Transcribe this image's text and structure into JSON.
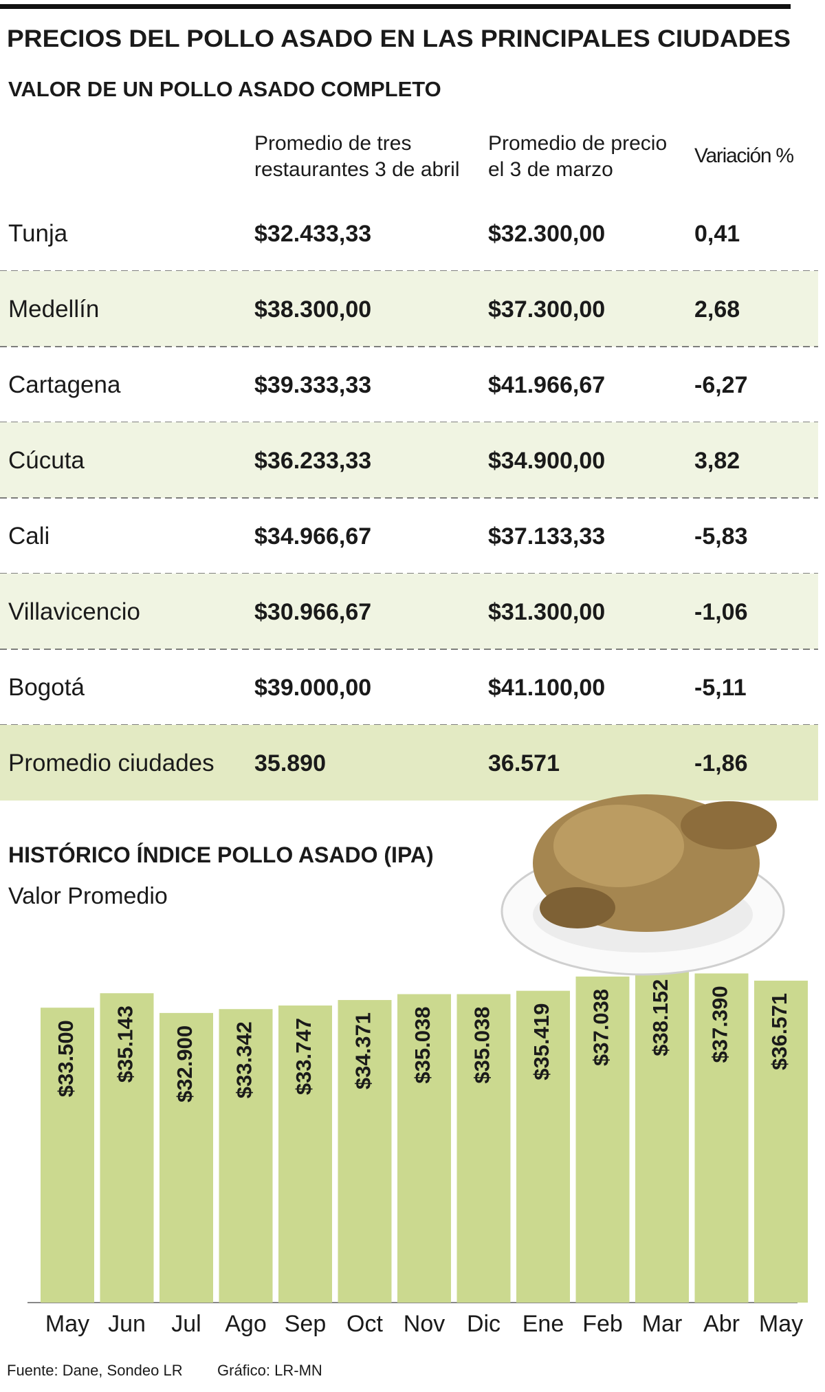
{
  "title": "PRECIOS DEL POLLO ASADO EN LAS PRINCIPALES CIUDADES",
  "subtitle": "VALOR DE UN POLLO ASADO COMPLETO",
  "table": {
    "columns": [
      [
        "Promedio de tres",
        "restaurantes 3 de abril"
      ],
      [
        "Promedio de precio",
        "el 3 de marzo"
      ],
      [
        "Variación %"
      ]
    ],
    "rows": [
      [
        "Tunja",
        "$32.433,33",
        "$32.300,00",
        "0,41"
      ],
      [
        "Medellín",
        "$38.300,00",
        "$37.300,00",
        "2,68"
      ],
      [
        "Cartagena",
        "$39.333,33",
        "$41.966,67",
        "-6,27"
      ],
      [
        "Cúcuta",
        "$36.233,33",
        "$34.900,00",
        "3,82"
      ],
      [
        "Cali",
        "$34.966,67",
        "$37.133,33",
        "-5,83"
      ],
      [
        "Villavicencio",
        "$30.966,67",
        "$31.300,00",
        "-1,06"
      ],
      [
        "Bogotá",
        "$39.000,00",
        "$41.100,00",
        "-5,11"
      ],
      [
        "Promedio ciudades",
        "35.890",
        "36.571",
        "-1,86"
      ]
    ]
  },
  "chart_data": {
    "type": "bar",
    "title": "HISTÓRICO ÍNDICE POLLO ASADO (IPA)",
    "subtitle": "Valor Promedio",
    "categories": [
      "May",
      "Jun",
      "Jul",
      "Ago",
      "Sep",
      "Oct",
      "Nov",
      "Dic",
      "Ene",
      "Feb",
      "Mar",
      "Abr",
      "May"
    ],
    "values": [
      33500,
      35143,
      32900,
      33342,
      33747,
      34371,
      35038,
      35038,
      35419,
      37038,
      38152,
      37390,
      36571
    ],
    "value_labels": [
      "$33.500",
      "$35.143",
      "$32.900",
      "$33.342",
      "$33.747",
      "$34.371",
      "$35.038",
      "$35.038",
      "$35.419",
      "$37.038",
      "$38.152",
      "$37.390",
      "$36.571"
    ],
    "color": "#cbd98f"
  },
  "footer": {
    "source": "Fuente: Dane, Sondeo LR",
    "credit": "Gráfico: LR-MN"
  }
}
